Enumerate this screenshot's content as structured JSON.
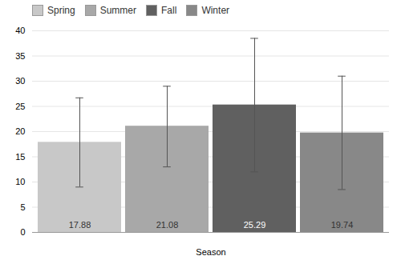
{
  "chart_data": {
    "type": "bar",
    "xlabel": "Season",
    "categories": [
      "Spring",
      "Summer",
      "Fall",
      "Winter"
    ],
    "values": [
      17.88,
      21.08,
      25.29,
      19.74
    ],
    "errors_upper": [
      8.82,
      7.92,
      13.21,
      11.26
    ],
    "errors_lower": [
      8.88,
      8.08,
      13.29,
      11.24
    ],
    "colors": [
      "#c8c8c8",
      "#a8a8a8",
      "#606060",
      "#888888"
    ],
    "ylim": [
      0,
      40
    ],
    "yticks": [
      0,
      5,
      10,
      15,
      20,
      25,
      30,
      35,
      40
    ],
    "grid": true,
    "legend": "upper left",
    "data_labels": true,
    "tick_labels": "y"
  }
}
